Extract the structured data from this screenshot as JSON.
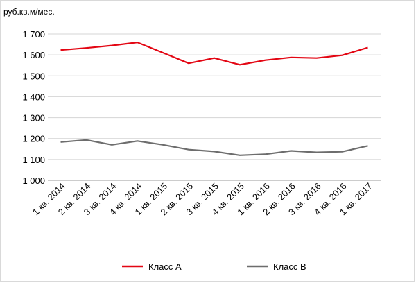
{
  "chart_data": {
    "type": "line",
    "unit_label": "руб.кв.м/мес.",
    "categories": [
      "1 кв. 2014",
      "2 кв. 2014",
      "3 кв. 2014",
      "4 кв. 2014",
      "1 кв. 2015",
      "2 кв. 2015",
      "3 кв. 2015",
      "4 кв. 2015",
      "1 кв. 2016",
      "2 кв. 2016",
      "3 кв. 2016",
      "4 кв. 2016",
      "1 кв. 2017"
    ],
    "y_ticks": [
      "1 000",
      "1 100",
      "1 200",
      "1 300",
      "1 400",
      "1 500",
      "1 600",
      "1 700"
    ],
    "ylim": [
      1000,
      1700
    ],
    "grid": true,
    "legend_position": "bottom",
    "series": [
      {
        "name": "Класс А",
        "color": "#e30613",
        "values": [
          1623,
          1633,
          1645,
          1660,
          1610,
          1560,
          1585,
          1553,
          1575,
          1588,
          1585,
          1598,
          1635
        ]
      },
      {
        "name": "Класс В",
        "color": "#6d6d6d",
        "values": [
          1183,
          1193,
          1170,
          1188,
          1170,
          1147,
          1138,
          1120,
          1125,
          1141,
          1134,
          1137,
          1165
        ]
      }
    ]
  }
}
